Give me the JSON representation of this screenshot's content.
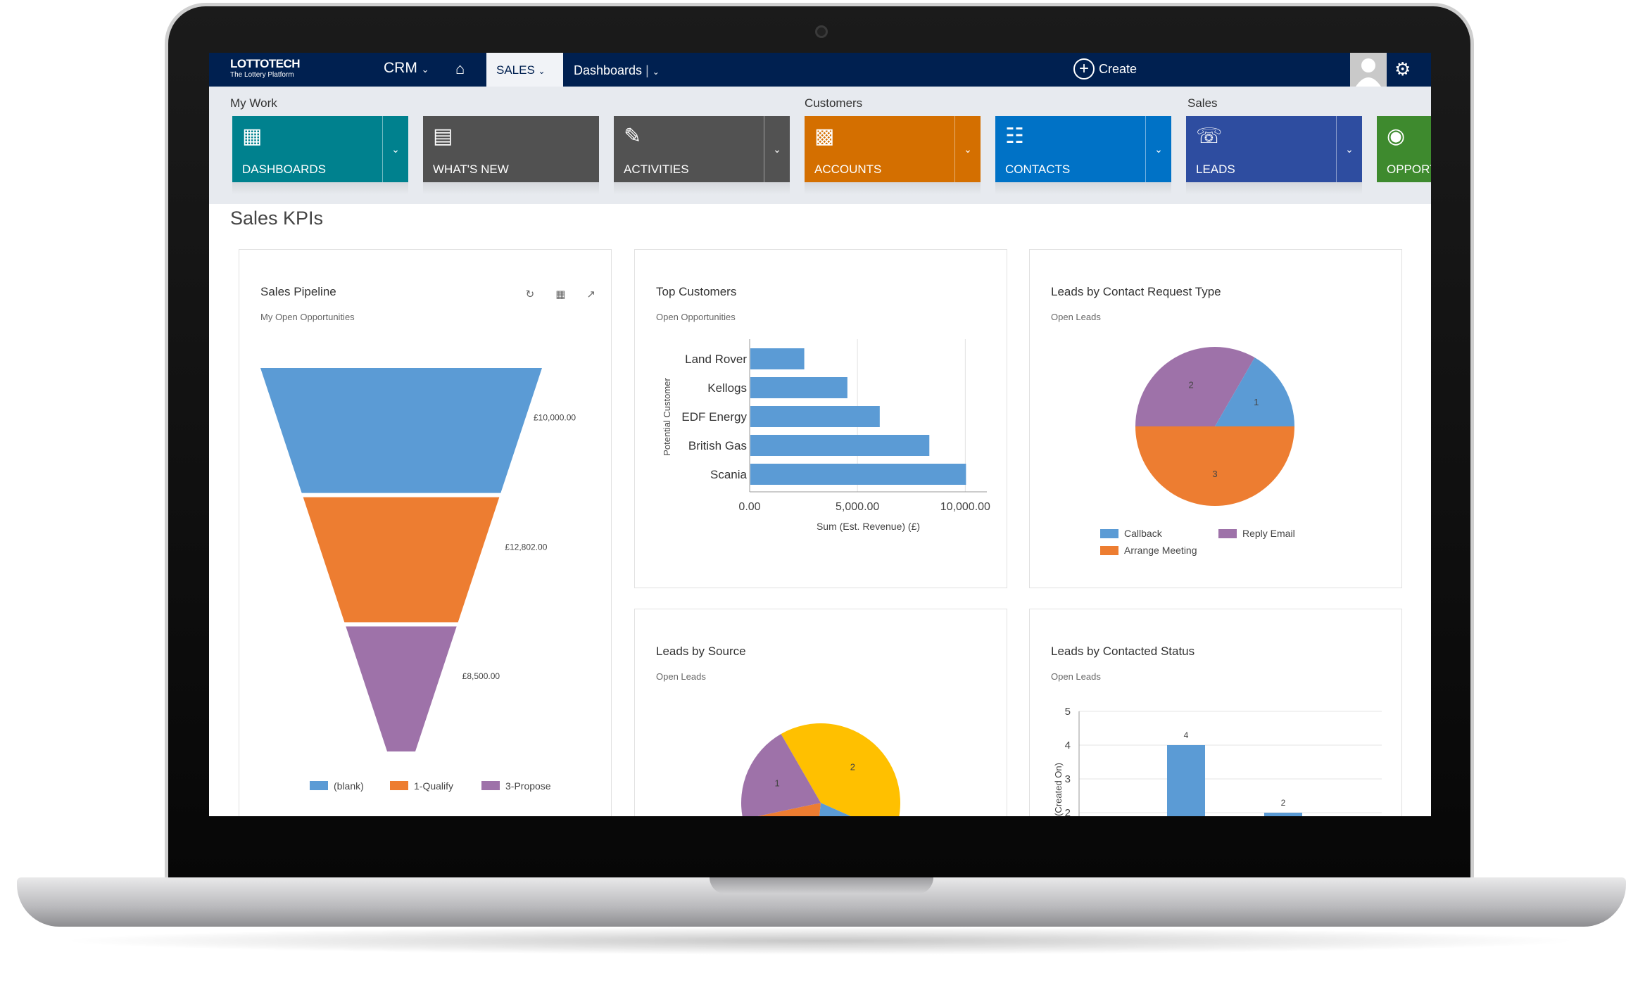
{
  "nav": {
    "logo_main": "LOTTOTECH",
    "logo_sub": "The Lottery Platform",
    "crm": "CRM",
    "sales": "SALES",
    "dashboards": "Dashboards",
    "create": "Create"
  },
  "groups": {
    "my_work": "My Work",
    "customers": "Customers",
    "sales": "Sales"
  },
  "tiles": [
    {
      "label": "DASHBOARDS",
      "color": "#00818e"
    },
    {
      "label": "WHAT'S NEW",
      "color": "#515151"
    },
    {
      "label": "ACTIVITIES",
      "color": "#525252"
    },
    {
      "label": "ACCOUNTS",
      "color": "#d46f00"
    },
    {
      "label": "CONTACTS",
      "color": "#0072c6"
    },
    {
      "label": "LEADS",
      "color": "#2e4da0"
    },
    {
      "label": "OPPORT",
      "color": "#3e8a2e"
    }
  ],
  "page_title": "Sales KPIs",
  "cards": {
    "pipeline": {
      "title": "Sales Pipeline",
      "subtitle": "My Open Opportunities"
    },
    "top_customers": {
      "title": "Top Customers",
      "subtitle": "Open Opportunities"
    },
    "leads_contact_type": {
      "title": "Leads by Contact Request Type",
      "subtitle": "Open Leads"
    },
    "leads_source": {
      "title": "Leads by Source",
      "subtitle": "Open Leads"
    },
    "leads_status": {
      "title": "Leads by Contacted Status",
      "subtitle": "Open Leads"
    }
  },
  "chart_data": [
    {
      "type": "funnel",
      "title": "Sales Pipeline",
      "categories": [
        "(blank)",
        "1-Qualify",
        "3-Propose"
      ],
      "values": [
        10000,
        12802,
        8500
      ],
      "value_labels": [
        "£10,000.00",
        "£12,802.00",
        "£8,500.00"
      ],
      "colors": [
        "#5b9bd5",
        "#ed7d31",
        "#9e72a9"
      ],
      "legend": "bottom"
    },
    {
      "type": "bar",
      "orientation": "horizontal",
      "title": "Top Customers",
      "categories": [
        "Land Rover",
        "Kellogs",
        "EDF Energy",
        "British Gas",
        "Scania"
      ],
      "values": [
        2500,
        4500,
        6000,
        8300,
        10000
      ],
      "xlabel": "Sum (Est. Revenue) (£)",
      "ylabel": "Potential Customer",
      "xlim": [
        0,
        11000
      ],
      "xticks": [
        0,
        5000,
        10000
      ],
      "xtick_labels": [
        "0.00",
        "5,000.00",
        "10,000.00"
      ],
      "color": "#5b9bd5"
    },
    {
      "type": "pie",
      "title": "Leads by Contact Request Type",
      "slices": [
        {
          "name": "Reply Email",
          "value": 2,
          "color": "#9e72a9"
        },
        {
          "name": "Callback",
          "value": 1,
          "color": "#5b9bd5"
        },
        {
          "name": "Arrange Meeting",
          "value": 3,
          "color": "#ed7d31"
        }
      ],
      "legend": "bottom"
    },
    {
      "type": "pie",
      "title": "Leads by Source",
      "slices": [
        {
          "value": 2,
          "color": "#ffc000"
        },
        {
          "value": 1,
          "color": "#5b9bd5"
        },
        {
          "value": 1,
          "color": "#ed7d31"
        },
        {
          "value": 1,
          "color": "#9e72a9"
        }
      ]
    },
    {
      "type": "bar",
      "title": "Leads by Contacted Status",
      "values": [
        4,
        2
      ],
      "value_labels": [
        "4",
        "2"
      ],
      "ylabel": "All (Created On)",
      "ylim": [
        2,
        5
      ],
      "yticks": [
        2,
        3,
        4,
        5
      ],
      "color": "#5b9bd5"
    }
  ]
}
